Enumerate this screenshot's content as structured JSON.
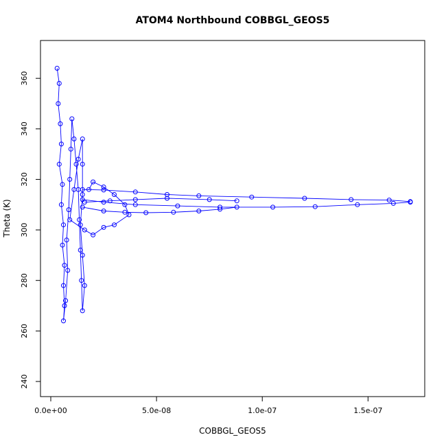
{
  "chart_data": {
    "type": "scatter",
    "title": "ATOM4 Northbound COBBGL_GEOS5",
    "xlabel": "COBBGL_GEOS5",
    "ylabel": "Theta (K)",
    "xlim": [
      0,
      1.7e-07
    ],
    "ylim": [
      237,
      372
    ],
    "x_ticks": [
      0,
      5e-08,
      1e-07,
      1.5e-07
    ],
    "x_tick_labels": [
      "0.0e+00",
      "5.0e-08",
      "1.0e-07",
      "1.5e-07"
    ],
    "y_ticks": [
      240,
      260,
      280,
      300,
      320,
      340,
      360
    ],
    "y_tick_labels": [
      "240",
      "260",
      "280",
      "300",
      "320",
      "340",
      "360"
    ],
    "grid": false,
    "legend": "none",
    "series_color": "#0000ff",
    "marker": "open-circle",
    "connected": true,
    "series": [
      {
        "points": [
          [
            3e-09,
            364
          ],
          [
            4e-09,
            358
          ],
          [
            3.5e-09,
            350
          ],
          [
            4.5e-09,
            342
          ],
          [
            5e-09,
            334
          ],
          [
            4e-09,
            326
          ],
          [
            5.5e-09,
            318
          ],
          [
            5e-09,
            310
          ],
          [
            6e-09,
            302
          ],
          [
            5.5e-09,
            294
          ],
          [
            6.5e-09,
            286
          ],
          [
            6e-09,
            278
          ],
          [
            6.5e-09,
            270
          ],
          [
            6e-09,
            264
          ],
          [
            7e-09,
            272
          ],
          [
            8e-09,
            284
          ],
          [
            7.5e-09,
            296
          ],
          [
            8.5e-09,
            308
          ],
          [
            9e-09,
            320
          ],
          [
            9.5e-09,
            332
          ],
          [
            1e-08,
            344
          ],
          [
            1.1e-08,
            336
          ],
          [
            1.2e-08,
            326
          ],
          [
            1.3e-08,
            316
          ],
          [
            1.35e-08,
            304
          ],
          [
            1.4e-08,
            292
          ],
          [
            1.45e-08,
            280
          ],
          [
            1.5e-08,
            268
          ],
          [
            1.6e-08,
            278
          ],
          [
            1.5e-08,
            290
          ],
          [
            1.4e-08,
            302
          ],
          [
            1.5e-08,
            314
          ],
          [
            1.5e-08,
            326
          ],
          [
            1.5e-08,
            336
          ],
          [
            1.3e-08,
            328
          ],
          [
            1.1e-08,
            316
          ],
          [
            9e-09,
            304
          ],
          [
            1.6e-08,
            300
          ],
          [
            2e-08,
            298
          ],
          [
            2.5e-08,
            301
          ],
          [
            3e-08,
            302
          ],
          [
            3.7e-08,
            306
          ],
          [
            3.5e-08,
            310
          ],
          [
            3e-08,
            314
          ],
          [
            2.5e-08,
            317
          ],
          [
            2e-08,
            319
          ],
          [
            1.8e-08,
            316
          ]
        ]
      },
      {
        "points": [
          [
            1.5e-08,
            316
          ],
          [
            2.5e-08,
            315.8
          ],
          [
            4e-08,
            315
          ],
          [
            5.5e-08,
            314
          ],
          [
            7e-08,
            313.5
          ],
          [
            9.5e-08,
            313
          ],
          [
            1.2e-07,
            312.5
          ],
          [
            1.42e-07,
            312
          ],
          [
            1.6e-07,
            311.8
          ],
          [
            1.7e-07,
            311.2
          ]
        ]
      },
      {
        "points": [
          [
            1.5e-08,
            312
          ],
          [
            2.5e-08,
            311
          ],
          [
            4e-08,
            310
          ],
          [
            6e-08,
            309.5
          ],
          [
            8e-08,
            309
          ],
          [
            1.05e-07,
            309
          ],
          [
            1.25e-07,
            309.2
          ],
          [
            1.45e-07,
            310
          ],
          [
            1.62e-07,
            310.5
          ],
          [
            1.7e-07,
            311
          ]
        ]
      },
      {
        "points": [
          [
            1.5e-08,
            309
          ],
          [
            2.5e-08,
            307.5
          ],
          [
            3.5e-08,
            307
          ],
          [
            4.5e-08,
            306.8
          ],
          [
            5.8e-08,
            307
          ],
          [
            7e-08,
            307.5
          ],
          [
            8e-08,
            308.2
          ],
          [
            8.8e-08,
            309
          ]
        ]
      },
      {
        "points": [
          [
            1.6e-08,
            311
          ],
          [
            2.8e-08,
            311.5
          ],
          [
            4e-08,
            312
          ],
          [
            5.5e-08,
            312.5
          ],
          [
            7.5e-08,
            312
          ],
          [
            8.8e-08,
            311.5
          ]
        ]
      }
    ]
  }
}
